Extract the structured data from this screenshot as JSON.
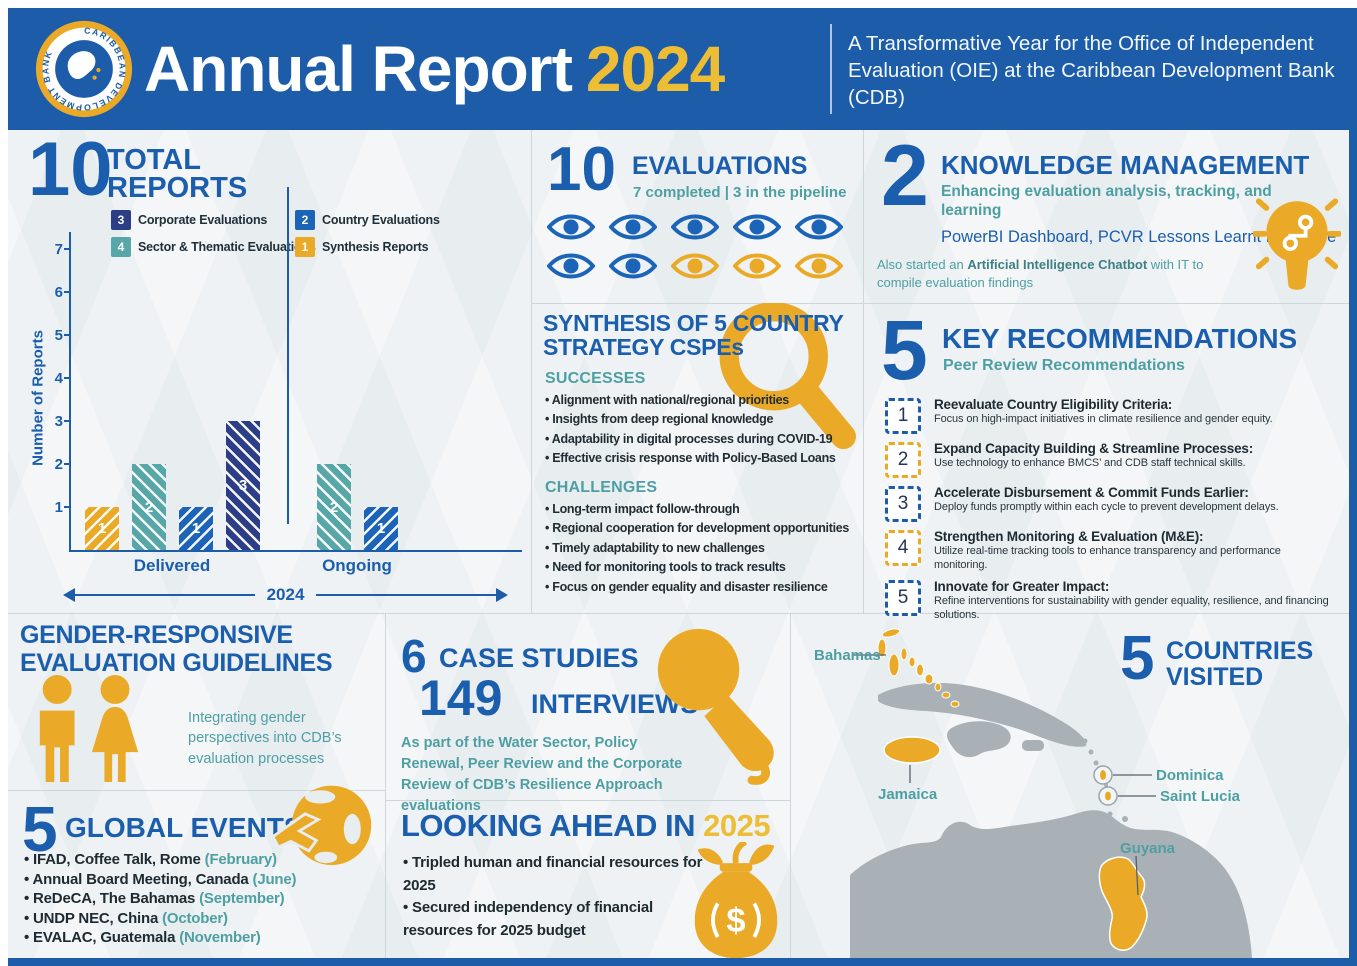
{
  "colors": {
    "blue": "#1b5ead",
    "header_blue": "#1c5ca9",
    "gold": "#eaaa28",
    "year_gold": "#edbd35",
    "teal": "#4e9fa3",
    "navy": "#2d3e88",
    "mid_blue": "#1c64b8",
    "teal_bar": "#57a7a9",
    "map_gray": "#a9b1b6",
    "background": "#e8edf0"
  },
  "header": {
    "logo_text": "CARIBBEAN DEVELOPMENT BANK",
    "title": "Annual Report",
    "title_year": "2024",
    "subtitle": "A Transformative Year for the Office of Independent Evaluation (OIE) at the Caribbean Development Bank (CDB)"
  },
  "total_reports": {
    "number": "10",
    "title_line1": "TOTAL",
    "title_line2": "REPORTS",
    "legend": [
      {
        "count": "3",
        "label": "Corporate Evaluations",
        "color": "#2d3e88"
      },
      {
        "count": "2",
        "label": "Country Evaluations",
        "color": "#1c64b8"
      },
      {
        "count": "4",
        "label": "Sector & Thematic Evaluations",
        "color": "#57a7a9"
      },
      {
        "count": "1",
        "label": "Synthesis Reports",
        "color": "#eaaa28"
      }
    ]
  },
  "chart_data": {
    "type": "bar",
    "title": "10 Total Reports",
    "ylabel": "Number of Reports",
    "ylim": [
      0,
      7
    ],
    "yticks": [
      1,
      2,
      3,
      4,
      5,
      6,
      7
    ],
    "grid": false,
    "x_axis_label": "2024",
    "groups": [
      {
        "label": "Delivered",
        "center": 101
      },
      {
        "label": "Ongoing",
        "center": 286
      }
    ],
    "bars": [
      {
        "group": "Delivered",
        "series": "Synthesis Reports",
        "value": 1,
        "color": "#eaaa28",
        "hatch": "b"
      },
      {
        "group": "Delivered",
        "series": "Sector & Thematic Evaluations",
        "value": 2,
        "color": "#57a7a9",
        "hatch": "a"
      },
      {
        "group": "Delivered",
        "series": "Country Evaluations",
        "value": 1,
        "color": "#1c64b8",
        "hatch": "b"
      },
      {
        "group": "Delivered",
        "series": "Corporate Evaluations",
        "value": 3,
        "color": "#2d3e88",
        "hatch": "a"
      },
      {
        "group": "Ongoing",
        "series": "Sector & Thematic Evaluations",
        "value": 2,
        "color": "#57a7a9",
        "hatch": "a"
      },
      {
        "group": "Ongoing",
        "series": "Country Evaluations",
        "value": 1,
        "color": "#1c64b8",
        "hatch": "b"
      }
    ]
  },
  "evaluations": {
    "number": "10",
    "title": "EVALUATIONS",
    "subtitle": "7 completed | 3 in the pipeline",
    "completed": 7,
    "pipeline": 3,
    "icon": "eye-icon"
  },
  "knowledge_management": {
    "number": "2",
    "title": "KNOWLEDGE MANAGEMENT",
    "subtitle": "Enhancing evaluation analysis, tracking, and learning",
    "tools": "PowerBI Dashboard, PCVR Lessons Learnt Database",
    "note_prefix": "Also started an ",
    "note_bold": "Artificial Intelligence Chatbot",
    "note_suffix": " with IT to compile evaluation findings",
    "icon": "lightbulb-circuit-icon"
  },
  "synthesis": {
    "title_line1": "SYNTHESIS OF 5 COUNTRY",
    "title_line2": "STRATEGY CSPEs",
    "successes_heading": "SUCCESSES",
    "successes": [
      "Alignment with national/regional priorities",
      "Insights from deep regional knowledge",
      "Adaptability in digital processes during COVID-19",
      "Effective crisis response with Policy-Based Loans"
    ],
    "challenges_heading": "CHALLENGES",
    "challenges": [
      "Long-term impact follow-through",
      "Regional cooperation for development opportunities",
      "Timely adaptability to new challenges",
      "Need for monitoring tools to track results",
      "Focus on gender equality and disaster resilience"
    ],
    "icon": "magnifying-glass-icon"
  },
  "recommendations": {
    "number": "5",
    "title": "KEY RECOMMENDATIONS",
    "subtitle": "Peer Review Recommendations",
    "items": [
      {
        "num": "1",
        "accent": "blue",
        "title": "Reevaluate Country Eligibility Criteria:",
        "desc": "Focus on high-impact initiatives in climate resilience and gender equity."
      },
      {
        "num": "2",
        "accent": "gold",
        "title": "Expand Capacity Building & Streamline Processes:",
        "desc": "Use technology to enhance BMCS’ and CDB staff technical skills."
      },
      {
        "num": "3",
        "accent": "blue",
        "title": "Accelerate Disbursement & Commit Funds Earlier:",
        "desc": "Deploy funds promptly within each cycle to prevent development delays."
      },
      {
        "num": "4",
        "accent": "gold",
        "title": "Strengthen Monitoring & Evaluation (M&E):",
        "desc": "Utilize real-time tracking tools to enhance transparency and performance monitoring."
      },
      {
        "num": "5",
        "accent": "blue",
        "title": "Innovate for Greater Impact:",
        "desc": "Refine interventions for sustainability with gender equality, resilience, and financing solutions."
      }
    ]
  },
  "gender": {
    "title_line1": "GENDER-RESPONSIVE",
    "title_line2": "EVALUATION GUIDELINES",
    "text": "Integrating gender perspectives into CDB’s evaluation processes",
    "icon": "man-woman-icon"
  },
  "case_studies": {
    "number_cases": "6",
    "label_cases": "CASE STUDIES",
    "number_interviews": "149",
    "label_interviews": "INTERVIEWS",
    "text": "As part of the Water Sector, Policy Renewal, Peer Review and the Corporate Review of CDB’s Resilience Approach evaluations",
    "icon": "microphone-icon"
  },
  "global_events": {
    "number": "5",
    "title": "GLOBAL EVENTS",
    "icon": "globe-airplane-icon",
    "events": [
      {
        "text": "IFAD, Coffee Talk, Rome",
        "month": "(February)"
      },
      {
        "text": "Annual Board Meeting, Canada",
        "month": "(June)"
      },
      {
        "text": "ReDeCA, The Bahamas",
        "month": "(September)"
      },
      {
        "text": "UNDP NEC, China",
        "month": "(October)"
      },
      {
        "text": "EVALAC, Guatemala",
        "month": "(November)"
      }
    ]
  },
  "looking_ahead": {
    "title": "LOOKING AHEAD IN",
    "year": "2025",
    "icon": "money-bag-icon",
    "items": [
      "Tripled human and financial resources for 2025",
      "Secured independency of financial resources for 2025 budget"
    ]
  },
  "countries_visited": {
    "number": "5",
    "title_line1": "COUNTRIES",
    "title_line2": "VISITED",
    "countries": [
      "Bahamas",
      "Jamaica",
      "Dominica",
      "Saint Lucia",
      "Guyana"
    ]
  }
}
